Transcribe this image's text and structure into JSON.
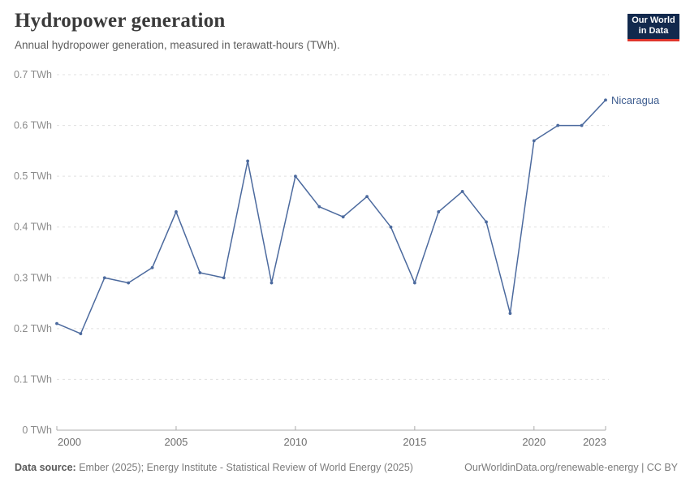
{
  "header": {
    "title": "Hydropower generation",
    "subtitle": "Annual hydropower generation, measured in terawatt-hours (TWh).",
    "logo": {
      "line1": "Our World",
      "line2": "in Data",
      "bg_color": "#12294d",
      "stripe_color": "#e0362c",
      "text_color": "#ffffff"
    }
  },
  "chart_data": {
    "type": "line",
    "title": "Hydropower generation",
    "unit": "TWh",
    "xlim": [
      2000,
      2023
    ],
    "ylim": [
      0,
      0.7
    ],
    "grid": "horizontal-dashed",
    "line_color": "#4c6a9e",
    "end_label_color": "#3d5c8f",
    "grid_color": "#e0e0e0",
    "axis_color": "#ababab",
    "series": [
      {
        "name": "Nicaragua",
        "x": [
          2000,
          2001,
          2002,
          2003,
          2004,
          2005,
          2006,
          2007,
          2008,
          2009,
          2010,
          2011,
          2012,
          2013,
          2014,
          2015,
          2016,
          2017,
          2018,
          2019,
          2020,
          2021,
          2022,
          2023
        ],
        "values": [
          0.21,
          0.19,
          0.3,
          0.29,
          0.32,
          0.43,
          0.31,
          0.3,
          0.53,
          0.29,
          0.5,
          0.44,
          0.42,
          0.46,
          0.4,
          0.29,
          0.43,
          0.47,
          0.41,
          0.23,
          0.57,
          0.6,
          0.6,
          0.65
        ]
      }
    ],
    "yticks": [
      {
        "v": 0.0,
        "label": "0 TWh"
      },
      {
        "v": 0.1,
        "label": "0.1 TWh"
      },
      {
        "v": 0.2,
        "label": "0.2 TWh"
      },
      {
        "v": 0.3,
        "label": "0.3 TWh"
      },
      {
        "v": 0.4,
        "label": "0.4 TWh"
      },
      {
        "v": 0.5,
        "label": "0.5 TWh"
      },
      {
        "v": 0.6,
        "label": "0.6 TWh"
      },
      {
        "v": 0.7,
        "label": "0.7 TWh"
      }
    ],
    "xticks": [
      {
        "v": 2000,
        "label": "2000"
      },
      {
        "v": 2005,
        "label": "2005"
      },
      {
        "v": 2010,
        "label": "2010"
      },
      {
        "v": 2015,
        "label": "2015"
      },
      {
        "v": 2020,
        "label": "2020"
      },
      {
        "v": 2023,
        "label": "2023"
      }
    ]
  },
  "footer": {
    "source_label": "Data source:",
    "source_text": " Ember (2025); Energy Institute - Statistical Review of World Energy (2025)",
    "rights": "OurWorldinData.org/renewable-energy | CC BY"
  }
}
